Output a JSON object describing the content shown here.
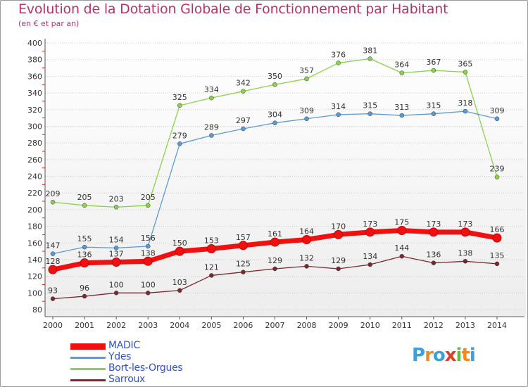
{
  "title": "Evolution de la Dotation Globale de Fonctionnement par Habitant",
  "subtitle": "(en € et par an)",
  "logo": {
    "text": "Proxiti",
    "letters": [
      {
        "ch": "P",
        "color": "#3aa0e0"
      },
      {
        "ch": "r",
        "color": "#f08a1c"
      },
      {
        "ch": "o",
        "color": "#3aa0e0"
      },
      {
        "ch": "x",
        "color": "#e03c2c"
      },
      {
        "ch": "i",
        "color": "#5bbf3a"
      },
      {
        "ch": "t",
        "color": "#f08a1c"
      },
      {
        "ch": "i",
        "color": "#3aa0e0"
      }
    ]
  },
  "chart_data": {
    "type": "line",
    "title": "Evolution de la Dotation Globale de Fonctionnement par Habitant",
    "subtitle": "(en € et par an)",
    "xlabel": "",
    "ylabel": "",
    "x": [
      "2000",
      "2001",
      "2002",
      "2003",
      "2004",
      "2005",
      "2006",
      "2007",
      "2008",
      "2009",
      "2010",
      "2011",
      "2012",
      "2013",
      "2014"
    ],
    "ylim": [
      80,
      400
    ],
    "yticks": [
      80,
      100,
      120,
      140,
      160,
      180,
      200,
      220,
      240,
      260,
      280,
      300,
      320,
      340,
      360,
      380,
      400
    ],
    "grid": "horizontal dotted",
    "legend": "bottom-left",
    "series": [
      {
        "name": "MADIC",
        "color": "#ee1111",
        "emphasis": true,
        "values": [
          128,
          136,
          137,
          138,
          150,
          153,
          157,
          161,
          164,
          170,
          173,
          175,
          173,
          173,
          166
        ],
        "labels": [
          "128",
          "136",
          "137",
          "138",
          "150",
          "153",
          "157",
          "161",
          "164",
          "170",
          "173",
          "175",
          "173",
          "173",
          "166"
        ]
      },
      {
        "name": "Ydes",
        "color": "#5a9bd5",
        "values": [
          147,
          155,
          154,
          156,
          279,
          289,
          297,
          304,
          309,
          314,
          315,
          313,
          315,
          318,
          309
        ],
        "labels": [
          "147",
          "155",
          "154",
          "156",
          "279",
          "289",
          "297",
          "304",
          "309",
          "314",
          "315",
          "313",
          "315",
          "318",
          "309"
        ]
      },
      {
        "name": "Bort-les-Orgues",
        "color": "#8cd24a",
        "values": [
          209,
          205,
          203,
          205,
          325,
          334,
          342,
          350,
          357,
          376,
          381,
          364,
          367,
          365,
          239
        ],
        "labels": [
          "209",
          "205",
          "203",
          "205",
          "325",
          "334",
          "342",
          "350",
          "357",
          "376",
          "381",
          "364",
          "367",
          "365",
          "239"
        ]
      },
      {
        "name": "Sarroux",
        "color": "#7a2a2e",
        "values": [
          93,
          96,
          100,
          100,
          103,
          121,
          125,
          129,
          132,
          129,
          134,
          144,
          136,
          138,
          135
        ],
        "labels": [
          "93",
          "96",
          "100",
          "100",
          "103",
          "121",
          "125",
          "129",
          "132",
          "129",
          "134",
          "144",
          "136",
          "138",
          "135"
        ]
      }
    ]
  }
}
